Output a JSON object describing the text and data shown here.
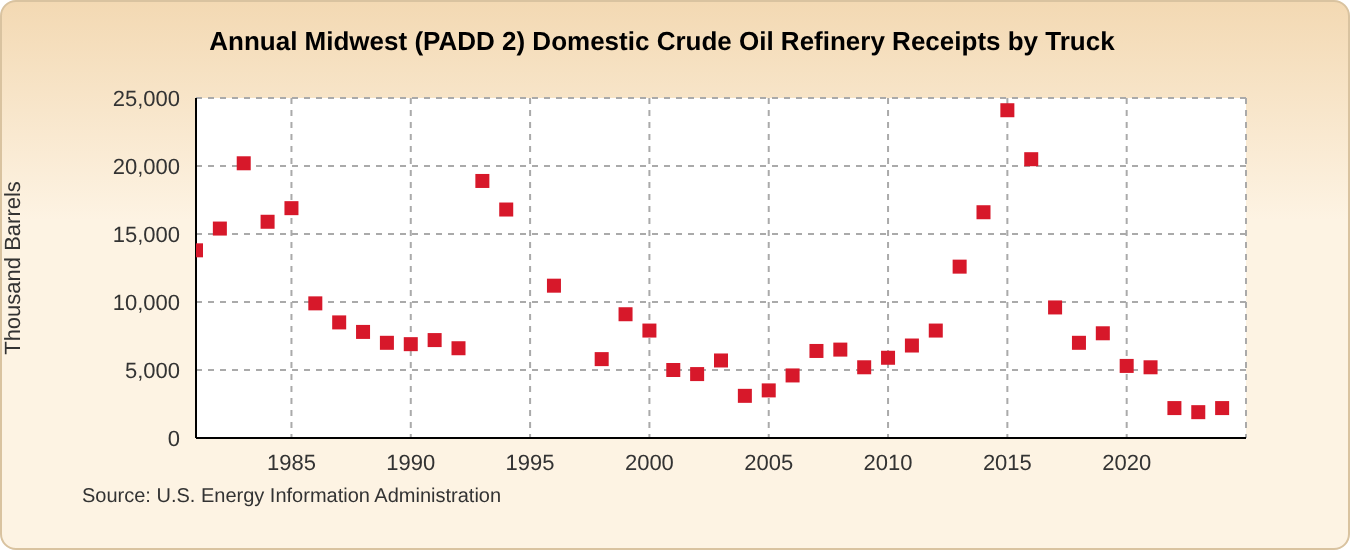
{
  "chart_data": {
    "type": "scatter",
    "title": "Annual Midwest (PADD 2) Domestic Crude Oil Refinery Receipts by Truck",
    "ylabel": "Thousand Barrels",
    "annotations": [
      "Source: U.S. Energy Information Administration"
    ],
    "x": [
      1981,
      1982,
      1983,
      1984,
      1985,
      1986,
      1987,
      1988,
      1989,
      1990,
      1991,
      1992,
      1993,
      1994,
      1996,
      1998,
      1999,
      2000,
      2001,
      2002,
      2003,
      2004,
      2005,
      2006,
      2007,
      2008,
      2009,
      2010,
      2011,
      2012,
      2013,
      2014,
      2015,
      2016,
      2017,
      2018,
      2019,
      2020,
      2021,
      2022,
      2023,
      2024
    ],
    "series": [
      {
        "color": "#d7182a",
        "values": [
          13800,
          15400,
          20200,
          15900,
          16900,
          9900,
          8500,
          7800,
          7000,
          6900,
          7200,
          6600,
          18900,
          16800,
          11200,
          5800,
          9100,
          7900,
          5000,
          4700,
          5700,
          3100,
          3500,
          4600,
          6400,
          6500,
          5200,
          5900,
          6800,
          7900,
          12600,
          16600,
          24100,
          20500,
          9600,
          7000,
          7700,
          5300,
          5200,
          2200,
          1900,
          2200
        ]
      }
    ],
    "xlim": [
      1981,
      2025
    ],
    "xticks": [
      1985,
      1990,
      1995,
      2000,
      2005,
      2010,
      2015,
      2020
    ],
    "ylim": [
      0,
      25000
    ],
    "yticks": [
      0,
      {
        "value": 5000,
        "label": "5,000"
      },
      {
        "value": 10000,
        "label": "10,000"
      },
      {
        "value": 15000,
        "label": "15,000"
      },
      {
        "value": 20000,
        "label": "20,000"
      },
      {
        "value": 25000,
        "label": "25,000"
      }
    ],
    "grid": true,
    "marker": "square"
  }
}
